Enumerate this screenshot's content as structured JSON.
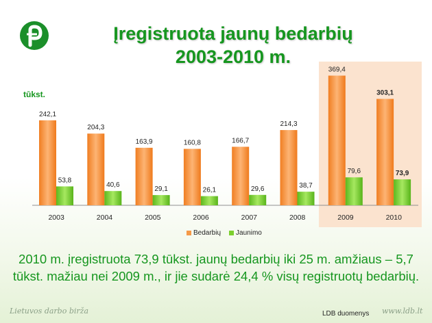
{
  "title_line1": "Įregistruota jaunų bedarbių",
  "title_line2": "2003-2010 m.",
  "unit_label": "tūkst.",
  "chart_data": {
    "type": "bar",
    "categories": [
      "2003",
      "2004",
      "2005",
      "2006",
      "2007",
      "2008",
      "2009",
      "2010"
    ],
    "series": [
      {
        "name": "Bedarbių",
        "values": [
          242.1,
          204.3,
          163.9,
          160.8,
          166.7,
          214.3,
          369.4,
          303.1
        ],
        "labels": [
          "242,1",
          "204,3",
          "163,9",
          "160,8",
          "166,7",
          "214,3",
          "369,4",
          "303,1"
        ],
        "color": "#f59a48"
      },
      {
        "name": "Jaunimo",
        "values": [
          53.8,
          40.6,
          29.1,
          26.1,
          29.6,
          38.7,
          79.6,
          73.9
        ],
        "labels": [
          "53,8",
          "40,6",
          "29,1",
          "26,1",
          "29,6",
          "38,7",
          "79,6",
          "73,9"
        ],
        "color": "#7ccf2e"
      }
    ],
    "highlighted_categories": [
      "2009",
      "2010"
    ],
    "bold_labels_category": "2010",
    "ylim": [
      0,
      400
    ],
    "grid": false,
    "legend_position": "bottom"
  },
  "caption_line1": "2010 m. įregistruota 73,9 tūkst. jaunų bedarbių iki 25 m. amžiaus – 5,7",
  "caption_line2": "tūkst. mažiau nei 2009 m., ir jie sudarė 24,4 % visų registruotų bedarbių.",
  "footer_org": "Lietuvos darbo birža",
  "footer_source": "LDB duomenys",
  "footer_url": "www.ldb.lt",
  "colors": {
    "title_green": "#16961f",
    "highlight_bg": "#fbe3cf"
  },
  "icons": {
    "logo": "ldb-logo-icon"
  }
}
